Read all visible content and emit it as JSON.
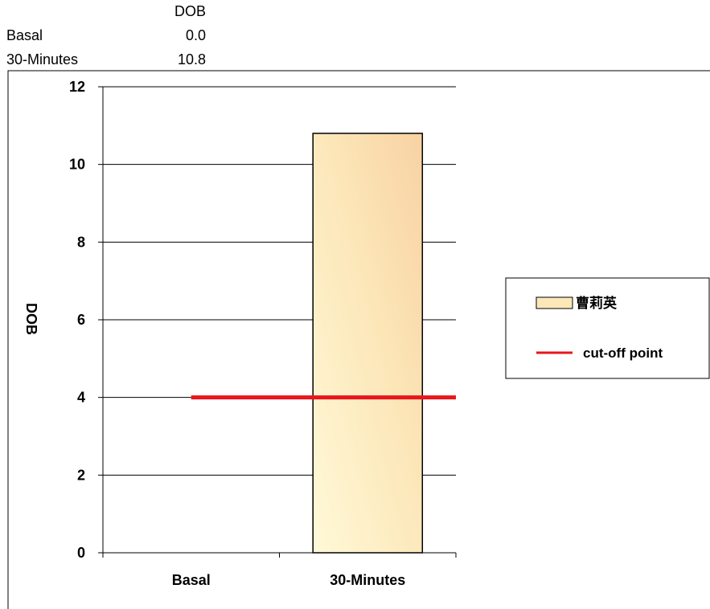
{
  "data_table": {
    "header": "DOB",
    "rows": [
      {
        "label": "Basal",
        "value": "0.0"
      },
      {
        "label": "30-Minutes",
        "value": "10.8"
      }
    ]
  },
  "chart_data": {
    "type": "bar",
    "categories": [
      "Basal",
      "30-Minutes"
    ],
    "series": [
      {
        "name": "曹莉英",
        "values": [
          0.0,
          10.8
        ],
        "color": "#FCE7B9"
      }
    ],
    "reference_lines": [
      {
        "name": "cut-off point",
        "y": 4,
        "color": "#E8161B"
      }
    ],
    "ylabel": "DOB",
    "ylim": [
      0,
      12
    ],
    "yticks": [
      0,
      2,
      4,
      6,
      8,
      10,
      12
    ],
    "grid": true,
    "legend_position": "right"
  }
}
